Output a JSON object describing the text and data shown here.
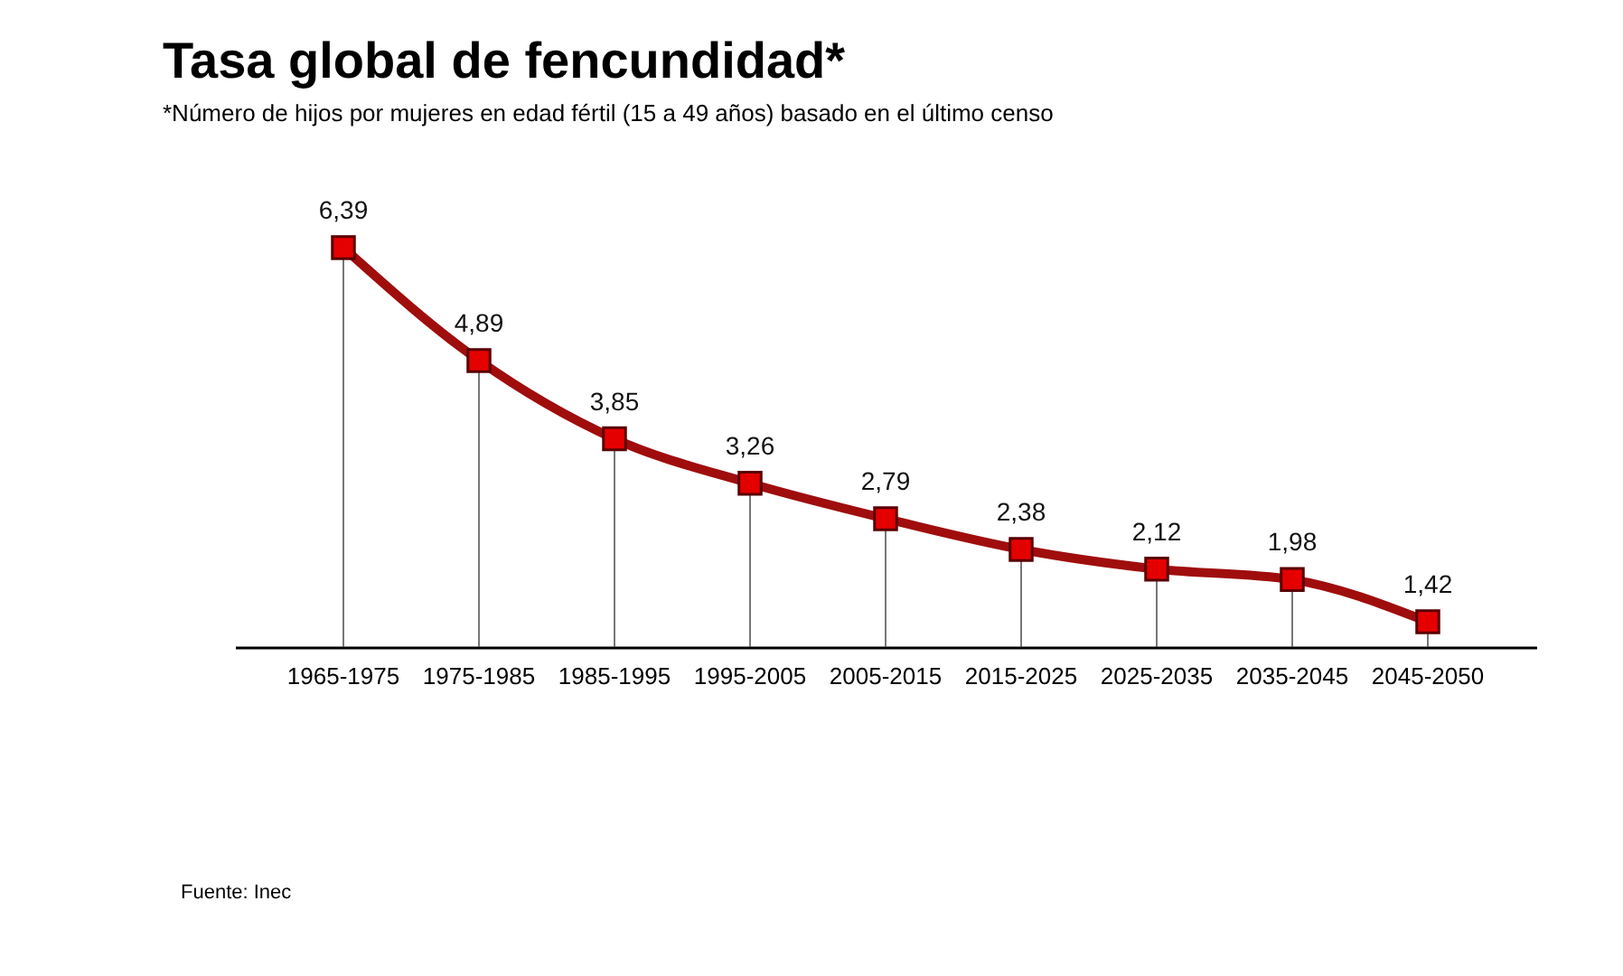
{
  "chart_data": {
    "type": "line",
    "title": "Tasa global de fencundidad*",
    "subtitle": "*Número de hijos por mujeres en edad fértil (15 a 49 años) basado en el último censo",
    "categories": [
      "1965-1975",
      "1975-1985",
      "1985-1995",
      "1995-2005",
      "2005-2015",
      "2015-2025",
      "2025-2035",
      "2035-2045",
      "2045-2050"
    ],
    "series": [
      {
        "color": "#a00d0d",
        "values": [
          6.39,
          4.89,
          3.85,
          3.26,
          2.79,
          2.38,
          2.12,
          1.98,
          1.42
        ],
        "value_labels": [
          "6,39",
          "4,89",
          "3,85",
          "3,26",
          "2,79",
          "2,38",
          "2,12",
          "1,98",
          "1,42"
        ]
      }
    ],
    "marker": "square",
    "grid": "x",
    "tick_labels": "x",
    "annotations": [
      "Fuente: Inec"
    ]
  }
}
